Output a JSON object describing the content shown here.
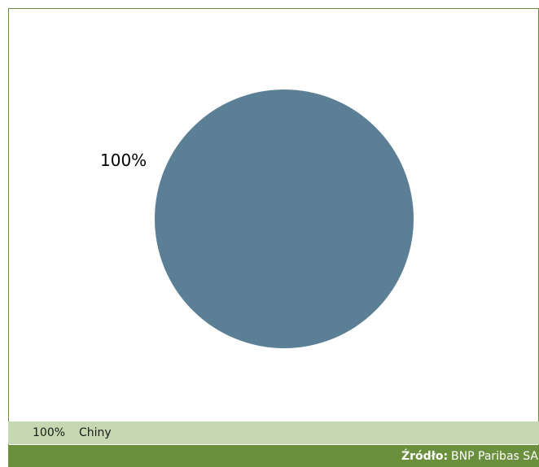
{
  "chart_data": {
    "type": "pie",
    "categories": [
      "Chiny"
    ],
    "values": [
      100
    ],
    "data_labels": [
      "100%"
    ],
    "colors": [
      "#5b7f95"
    ]
  },
  "legend": {
    "value": "100%",
    "label": "Chiny"
  },
  "footer": {
    "source_label": "Źródło:",
    "source_value": "BNP Paribas SA"
  },
  "colors": {
    "frame_border": "#6a8f3d",
    "legend_bg": "#c5d8b1",
    "footer_bg": "#6a8f3d"
  }
}
